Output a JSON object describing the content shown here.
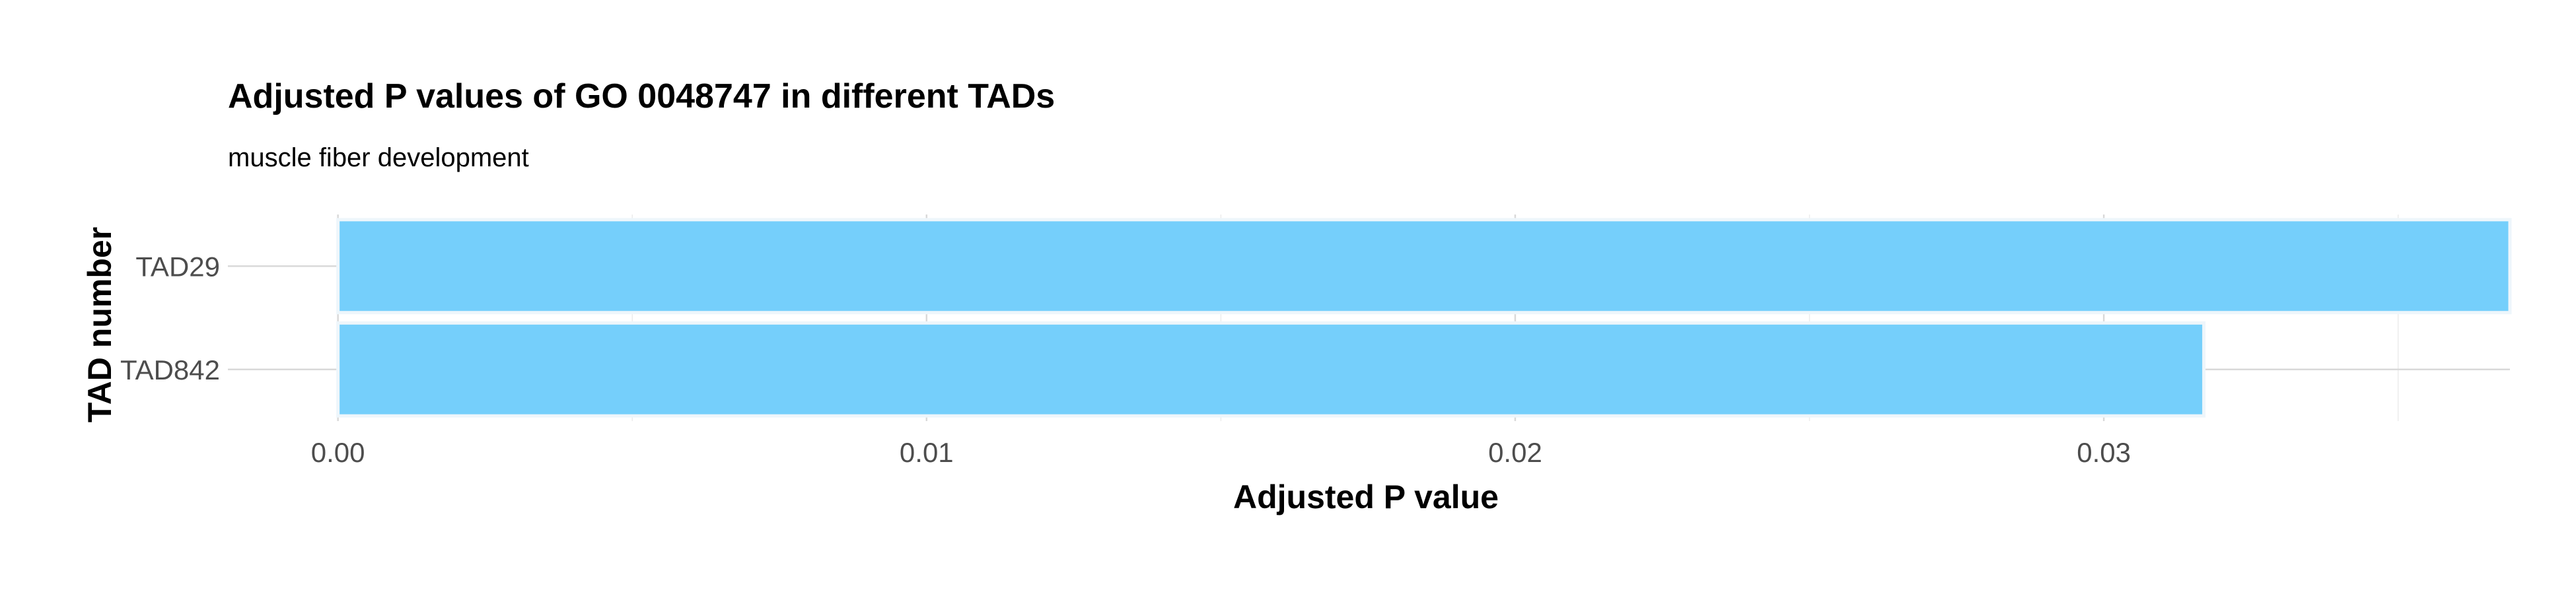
{
  "chart_data": {
    "type": "bar",
    "orientation": "horizontal",
    "title": "Adjusted P values of GO 0048747 in different TADs",
    "subtitle": "muscle fiber development",
    "xlabel": "Adjusted P value",
    "ylabel": "TAD number",
    "categories": [
      "TAD29",
      "TAD842"
    ],
    "values": [
      0.0369,
      0.0317
    ],
    "xlim": [
      -0.00187,
      0.0369
    ],
    "x_ticks": [
      0.0,
      0.01,
      0.02,
      0.03
    ],
    "x_tick_labels": [
      "0.00",
      "0.01",
      "0.02",
      "0.03"
    ],
    "x_minor_ticks": [
      0.005,
      0.015,
      0.025,
      0.035
    ],
    "bar_color": "#75CFFB",
    "grid": true,
    "legend": "none"
  }
}
